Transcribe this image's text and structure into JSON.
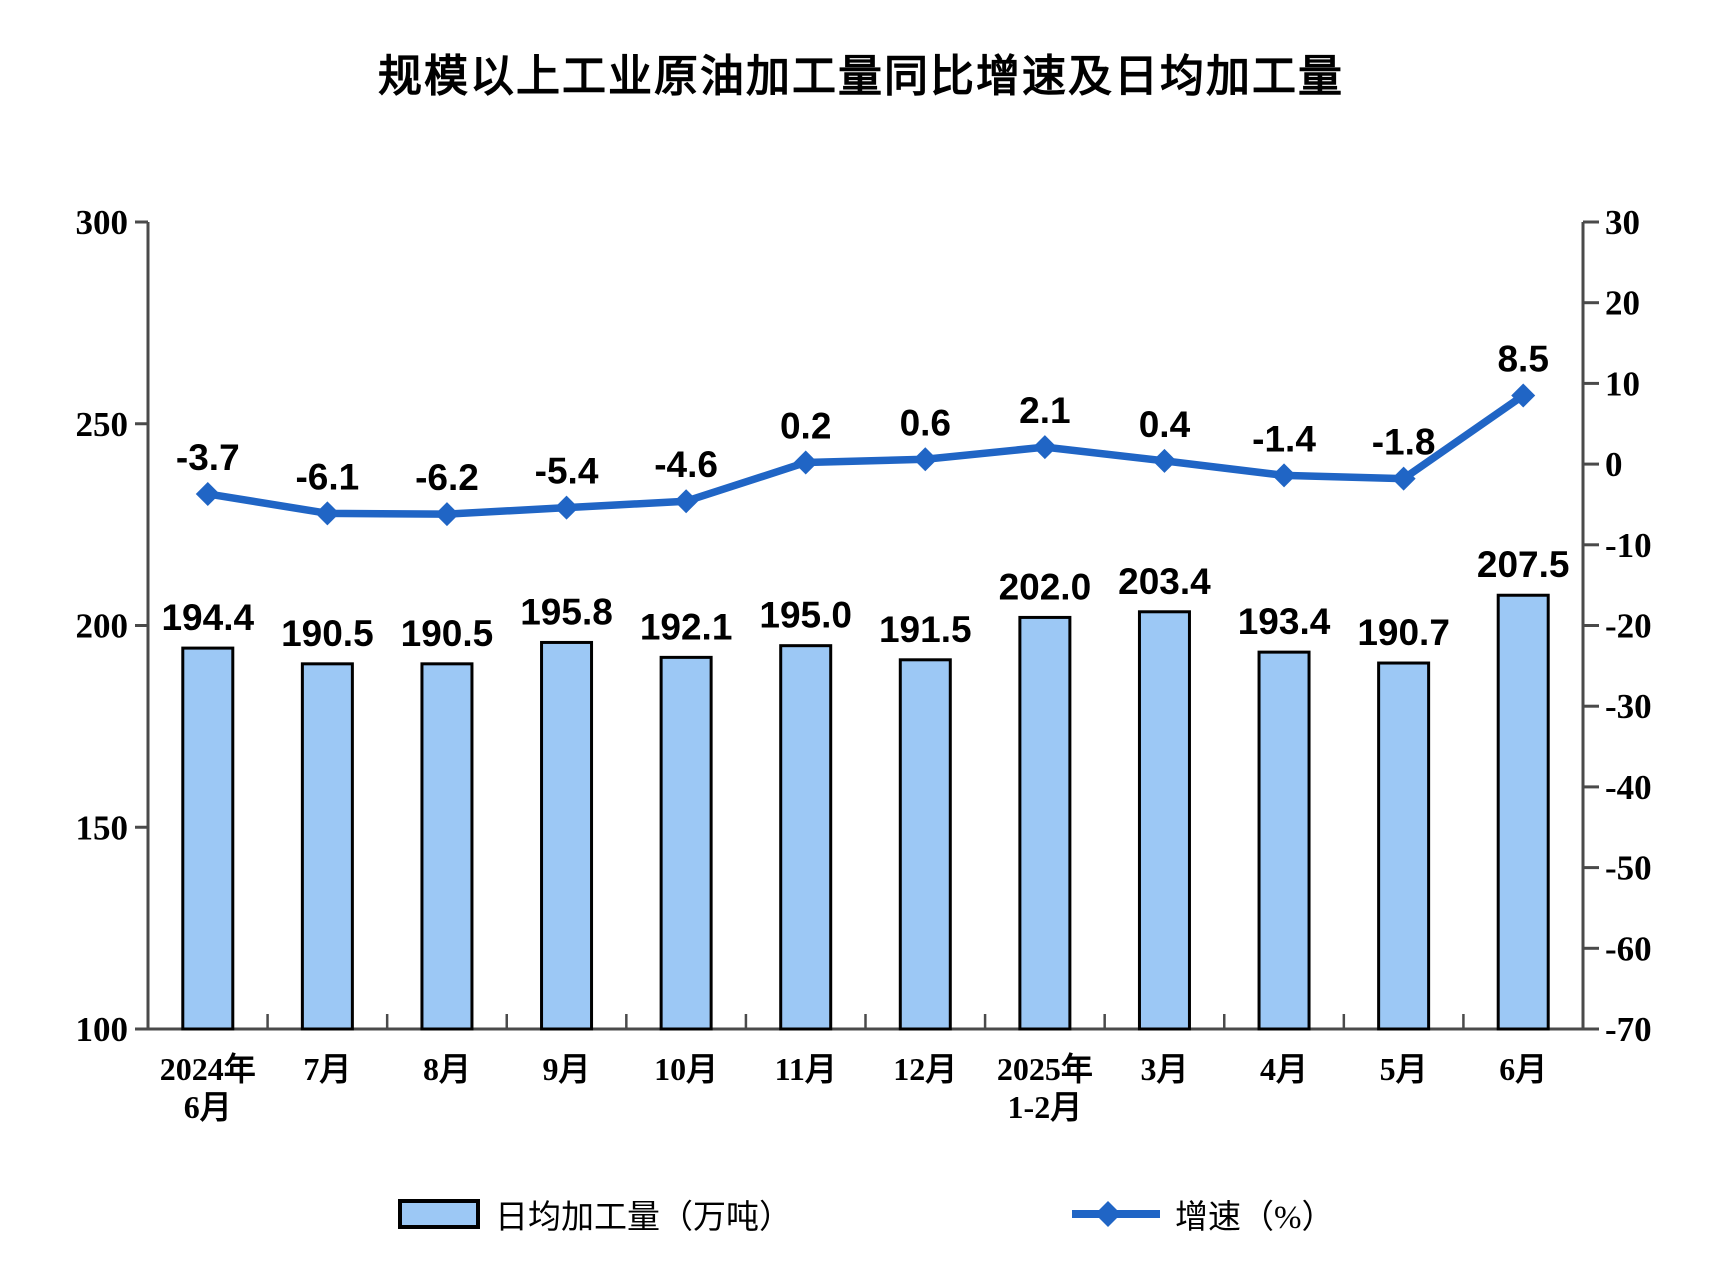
{
  "title": "规模以上工业原油加工量同比增速及日均加工量",
  "chart_data": {
    "type": "bar+line combo, dual axis",
    "title": "规模以上工业原油加工量同比增速及日均加工量",
    "categories": [
      [
        "2024年",
        "6月"
      ],
      [
        "7月"
      ],
      [
        "8月"
      ],
      [
        "9月"
      ],
      [
        "10月"
      ],
      [
        "11月"
      ],
      [
        "12月"
      ],
      [
        "2025年",
        "1-2月"
      ],
      [
        "3月"
      ],
      [
        "4月"
      ],
      [
        "5月"
      ],
      [
        "6月"
      ]
    ],
    "series": [
      {
        "name": "日均加工量（万吨）",
        "type": "bar",
        "axis": "left",
        "values": [
          194.4,
          190.5,
          190.5,
          195.8,
          192.1,
          195.0,
          191.5,
          202.0,
          203.4,
          193.4,
          190.7,
          207.5
        ]
      },
      {
        "name": "增速（%）",
        "type": "line",
        "axis": "right",
        "values": [
          -3.7,
          -6.1,
          -6.2,
          -5.4,
          -4.6,
          0.2,
          0.6,
          2.1,
          0.4,
          -1.4,
          -1.8,
          8.5
        ]
      }
    ],
    "left_axis": {
      "min": 100,
      "max": 300,
      "step": 50,
      "ticks": [
        300,
        250,
        200,
        150,
        100
      ]
    },
    "right_axis": {
      "min": -70,
      "max": 30,
      "step": 10,
      "ticks": [
        30,
        20,
        10,
        0,
        -10,
        -20,
        -30,
        -40,
        -50,
        -60,
        -70
      ]
    },
    "grid": false,
    "legend_position": "bottom",
    "data_label_decimals": 1,
    "colors": {
      "bar_fill": "#9CC8F5",
      "bar_border": "#000000",
      "line": "#2065C5",
      "text": "#000000",
      "axis": "#4a4a4a"
    }
  },
  "legend": {
    "bar_label": "日均加工量（万吨）",
    "line_label": "增速（%）"
  }
}
